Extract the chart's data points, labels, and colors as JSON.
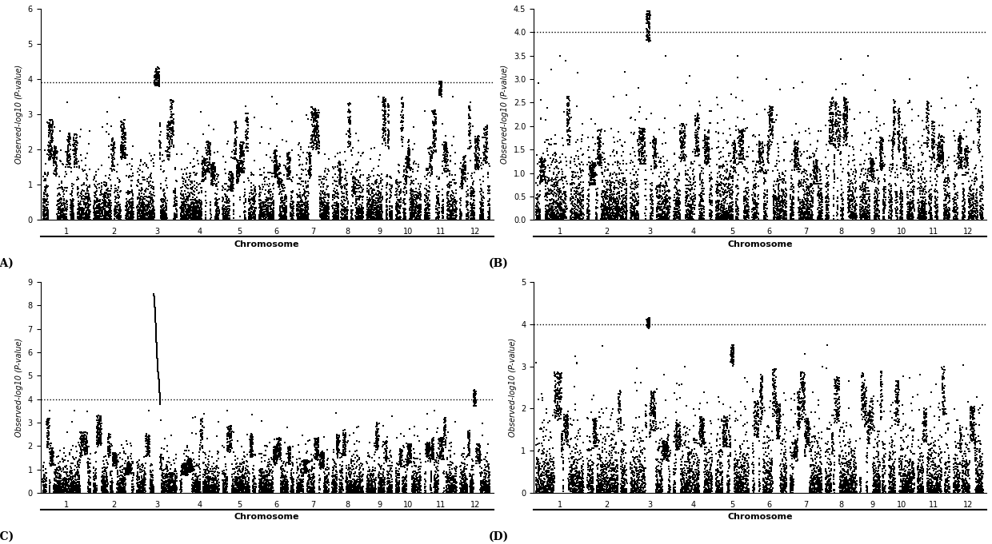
{
  "panels": [
    {
      "label": "(A)",
      "ylim": [
        0,
        6.0
      ],
      "yticks": [
        0.0,
        1.0,
        2.0,
        3.0,
        4.0,
        5.0,
        6.0
      ],
      "threshold": 3.9,
      "seed": 42
    },
    {
      "label": "(B)",
      "ylim": [
        0,
        4.5
      ],
      "yticks": [
        0.0,
        0.5,
        1.0,
        1.5,
        2.0,
        2.5,
        3.0,
        3.5,
        4.0,
        4.5
      ],
      "threshold": 4.0,
      "seed": 123
    },
    {
      "label": "(C)",
      "ylim": [
        0,
        9.0
      ],
      "yticks": [
        0.0,
        1.0,
        2.0,
        3.0,
        4.0,
        5.0,
        6.0,
        7.0,
        8.0,
        9.0
      ],
      "threshold": 4.0,
      "seed": 77
    },
    {
      "label": "(D)",
      "ylim": [
        0,
        5.0
      ],
      "yticks": [
        0.0,
        1.0,
        2.0,
        3.0,
        4.0,
        5.0
      ],
      "threshold": 4.0,
      "seed": 256
    }
  ],
  "chr_sizes": [
    43,
    36,
    36,
    35,
    30,
    31,
    29,
    28,
    23,
    23,
    29,
    27
  ],
  "n_chromosomes": 12,
  "ylabel": "Observed-log10 (P-value)",
  "xlabel": "Chromosome",
  "marker_size": 2.0,
  "marker_color": "#000000",
  "threshold_color": "#000000",
  "background_color": "#ffffff",
  "font_family": "serif"
}
